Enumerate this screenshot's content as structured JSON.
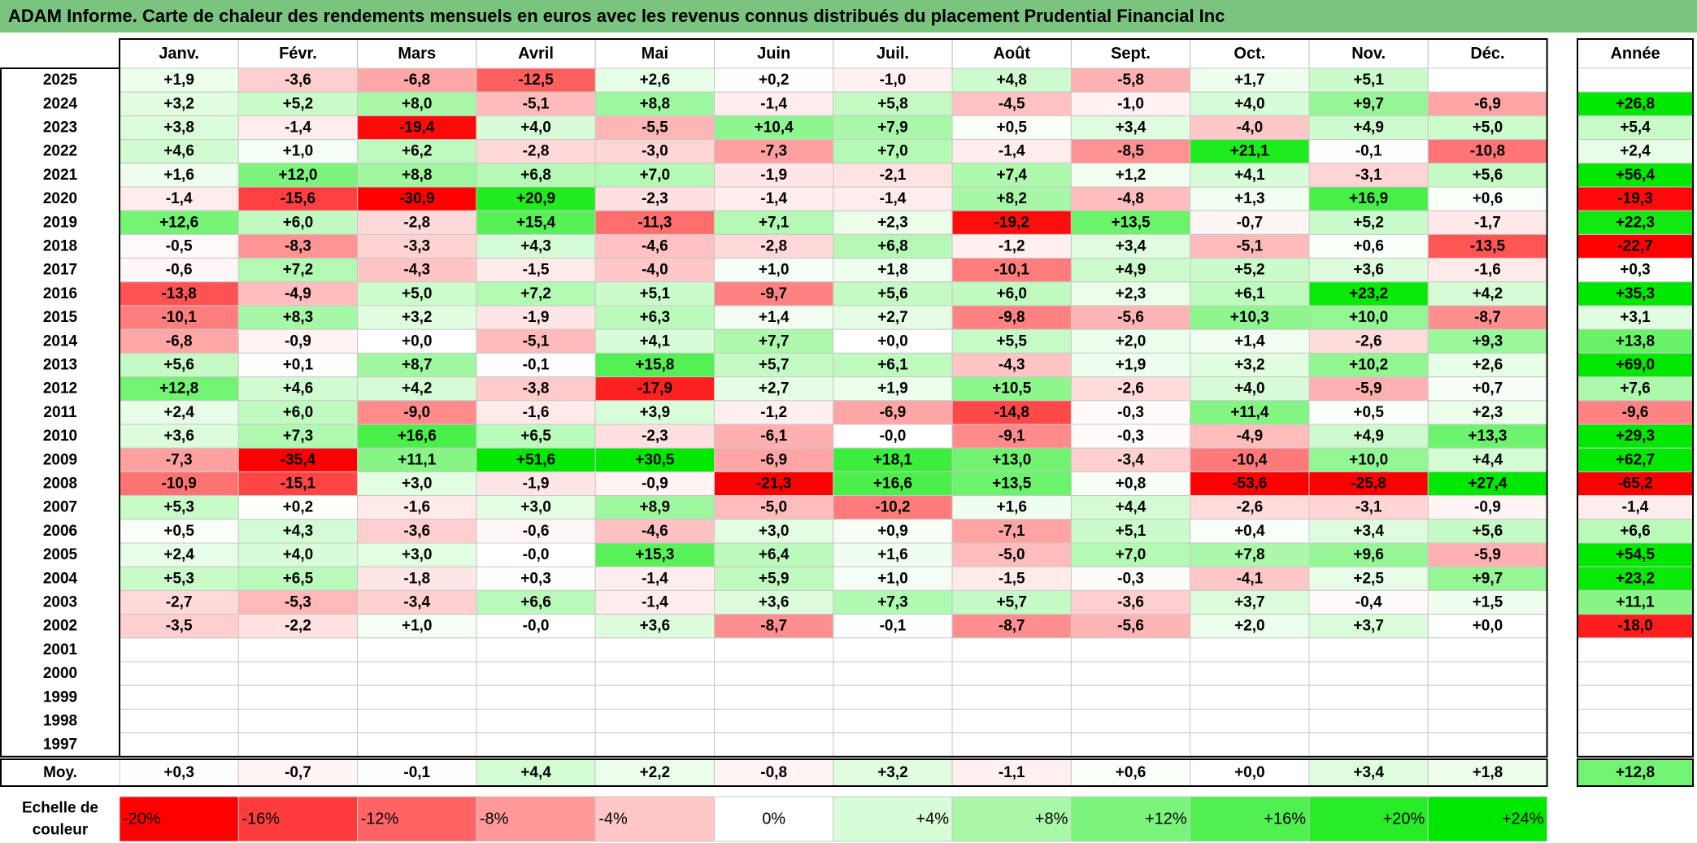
{
  "title": "ADAM Informe. Carte de chaleur des rendements mensuels en euros avec les revenus connus distribués du placement Prudential Financial Inc",
  "chart_data": {
    "type": "heatmap",
    "title": "ADAM Informe. Carte de chaleur des rendements mensuels en euros avec les revenus connus distribués du placement Prudential Financial Inc",
    "columns": [
      "Janv.",
      "Févr.",
      "Mars",
      "Avril",
      "Mai",
      "Juin",
      "Juil.",
      "Août",
      "Sept.",
      "Oct.",
      "Nov.",
      "Déc."
    ],
    "year_column_label": "Année",
    "rows": [
      {
        "year": "2025",
        "values": [
          "+1,9",
          "-3,6",
          "-6,8",
          "-12,5",
          "+2,6",
          "+0,2",
          "-1,0",
          "+4,8",
          "-5,8",
          "+1,7",
          "+5,1",
          ""
        ],
        "annual": ""
      },
      {
        "year": "2024",
        "values": [
          "+3,2",
          "+5,2",
          "+8,0",
          "-5,1",
          "+8,8",
          "-1,4",
          "+5,8",
          "-4,5",
          "-1,0",
          "+4,0",
          "+9,7",
          "-6,9"
        ],
        "annual": "+26,8"
      },
      {
        "year": "2023",
        "values": [
          "+3,8",
          "-1,4",
          "-19,4",
          "+4,0",
          "-5,5",
          "+10,4",
          "+7,9",
          "+0,5",
          "+3,4",
          "-4,0",
          "+4,9",
          "+5,0"
        ],
        "annual": "+5,4"
      },
      {
        "year": "2022",
        "values": [
          "+4,6",
          "+1,0",
          "+6,2",
          "-2,8",
          "-3,0",
          "-7,3",
          "+7,0",
          "-1,4",
          "-8,5",
          "+21,1",
          "-0,1",
          "-10,8"
        ],
        "annual": "+2,4"
      },
      {
        "year": "2021",
        "values": [
          "+1,6",
          "+12,0",
          "+8,8",
          "+6,8",
          "+7,0",
          "-1,9",
          "-2,1",
          "+7,4",
          "+1,2",
          "+4,1",
          "-3,1",
          "+5,6"
        ],
        "annual": "+56,4"
      },
      {
        "year": "2020",
        "values": [
          "-1,4",
          "-15,6",
          "-30,9",
          "+20,9",
          "-2,3",
          "-1,4",
          "-1,4",
          "+8,2",
          "-4,8",
          "+1,3",
          "+16,9",
          "+0,6"
        ],
        "annual": "-19,3"
      },
      {
        "year": "2019",
        "values": [
          "+12,6",
          "+6,0",
          "-2,8",
          "+15,4",
          "-11,3",
          "+7,1",
          "+2,3",
          "-19,2",
          "+13,5",
          "-0,7",
          "+5,2",
          "-1,7"
        ],
        "annual": "+22,3"
      },
      {
        "year": "2018",
        "values": [
          "-0,5",
          "-8,3",
          "-3,3",
          "+4,3",
          "-4,6",
          "-2,8",
          "+6,8",
          "-1,2",
          "+3,4",
          "-5,1",
          "+0,6",
          "-13,5"
        ],
        "annual": "-22,7"
      },
      {
        "year": "2017",
        "values": [
          "-0,6",
          "+7,2",
          "-4,3",
          "-1,5",
          "-4,0",
          "+1,0",
          "+1,8",
          "-10,1",
          "+4,9",
          "+5,2",
          "+3,6",
          "-1,6"
        ],
        "annual": "+0,3"
      },
      {
        "year": "2016",
        "values": [
          "-13,8",
          "-4,9",
          "+5,0",
          "+7,2",
          "+5,1",
          "-9,7",
          "+5,6",
          "+6,0",
          "+2,3",
          "+6,1",
          "+23,2",
          "+4,2"
        ],
        "annual": "+35,3"
      },
      {
        "year": "2015",
        "values": [
          "-10,1",
          "+8,3",
          "+3,2",
          "-1,9",
          "+6,3",
          "+1,4",
          "+2,7",
          "-9,8",
          "-5,6",
          "+10,3",
          "+10,0",
          "-8,7"
        ],
        "annual": "+3,1"
      },
      {
        "year": "2014",
        "values": [
          "-6,8",
          "-0,9",
          "+0,0",
          "-5,1",
          "+4,1",
          "+7,7",
          "+0,0",
          "+5,5",
          "+2,0",
          "+1,4",
          "-2,6",
          "+9,3"
        ],
        "annual": "+13,8"
      },
      {
        "year": "2013",
        "values": [
          "+5,6",
          "+0,1",
          "+8,7",
          "-0,1",
          "+15,8",
          "+5,7",
          "+6,1",
          "-4,3",
          "+1,9",
          "+3,2",
          "+10,2",
          "+2,6"
        ],
        "annual": "+69,0"
      },
      {
        "year": "2012",
        "values": [
          "+12,8",
          "+4,6",
          "+4,2",
          "-3,8",
          "-17,9",
          "+2,7",
          "+1,9",
          "+10,5",
          "-2,6",
          "+4,0",
          "-5,9",
          "+0,7"
        ],
        "annual": "+7,6"
      },
      {
        "year": "2011",
        "values": [
          "+2,4",
          "+6,0",
          "-9,0",
          "-1,6",
          "+3,9",
          "-1,2",
          "-6,9",
          "-14,8",
          "-0,3",
          "+11,4",
          "+0,5",
          "+2,3"
        ],
        "annual": "-9,6"
      },
      {
        "year": "2010",
        "values": [
          "+3,6",
          "+7,3",
          "+16,6",
          "+6,5",
          "-2,3",
          "-6,1",
          "-0,0",
          "-9,1",
          "-0,3",
          "-4,9",
          "+4,9",
          "+13,3"
        ],
        "annual": "+29,3"
      },
      {
        "year": "2009",
        "values": [
          "-7,3",
          "-35,4",
          "+11,1",
          "+51,6",
          "+30,5",
          "-6,9",
          "+18,1",
          "+13,0",
          "-3,4",
          "-10,4",
          "+10,0",
          "+4,4"
        ],
        "annual": "+62,7"
      },
      {
        "year": "2008",
        "values": [
          "-10,9",
          "-15,1",
          "+3,0",
          "-1,9",
          "-0,9",
          "-21,3",
          "+16,6",
          "+13,5",
          "+0,8",
          "-53,6",
          "-25,8",
          "+27,4"
        ],
        "annual": "-65,2"
      },
      {
        "year": "2007",
        "values": [
          "+5,3",
          "+0,2",
          "-1,6",
          "+3,0",
          "+8,9",
          "-5,0",
          "-10,2",
          "+1,6",
          "+4,4",
          "-2,6",
          "-3,1",
          "-0,9"
        ],
        "annual": "-1,4"
      },
      {
        "year": "2006",
        "values": [
          "+0,5",
          "+4,3",
          "-3,6",
          "-0,6",
          "-4,6",
          "+3,0",
          "+0,9",
          "-7,1",
          "+5,1",
          "+0,4",
          "+3,4",
          "+5,6"
        ],
        "annual": "+6,6"
      },
      {
        "year": "2005",
        "values": [
          "+2,4",
          "+4,0",
          "+3,0",
          "-0,0",
          "+15,3",
          "+6,4",
          "+1,6",
          "-5,0",
          "+7,0",
          "+7,8",
          "+9,6",
          "-5,9"
        ],
        "annual": "+54,5"
      },
      {
        "year": "2004",
        "values": [
          "+5,3",
          "+6,5",
          "-1,8",
          "+0,3",
          "-1,4",
          "+5,9",
          "+1,0",
          "-1,5",
          "-0,3",
          "-4,1",
          "+2,5",
          "+9,7"
        ],
        "annual": "+23,2"
      },
      {
        "year": "2003",
        "values": [
          "-2,7",
          "-5,3",
          "-3,4",
          "+6,6",
          "-1,4",
          "+3,6",
          "+7,3",
          "+5,7",
          "-3,6",
          "+3,7",
          "-0,4",
          "+1,5"
        ],
        "annual": "+11,1"
      },
      {
        "year": "2002",
        "values": [
          "-3,5",
          "-2,2",
          "+1,0",
          "-0,0",
          "+3,6",
          "-8,7",
          "-0,1",
          "-8,7",
          "-5,6",
          "+2,0",
          "+3,7",
          "+0,0"
        ],
        "annual": "-18,0"
      },
      {
        "year": "2001",
        "values": [
          "",
          "",
          "",
          "",
          "",
          "",
          "",
          "",
          "",
          "",
          "",
          ""
        ],
        "annual": ""
      },
      {
        "year": "2000",
        "values": [
          "",
          "",
          "",
          "",
          "",
          "",
          "",
          "",
          "",
          "",
          "",
          ""
        ],
        "annual": ""
      },
      {
        "year": "1999",
        "values": [
          "",
          "",
          "",
          "",
          "",
          "",
          "",
          "",
          "",
          "",
          "",
          ""
        ],
        "annual": ""
      },
      {
        "year": "1998",
        "values": [
          "",
          "",
          "",
          "",
          "",
          "",
          "",
          "",
          "",
          "",
          "",
          ""
        ],
        "annual": ""
      },
      {
        "year": "1997",
        "values": [
          "",
          "",
          "",
          "",
          "",
          "",
          "",
          "",
          "",
          "",
          "",
          ""
        ],
        "annual": ""
      }
    ],
    "average": {
      "label": "Moy.",
      "values": [
        "+0,3",
        "-0,7",
        "-0,1",
        "+4,4",
        "+2,2",
        "-0,8",
        "+3,2",
        "-1,1",
        "+0,6",
        "+0,0",
        "+3,4",
        "+1,8"
      ],
      "annual": "+12,8"
    },
    "color_scale": {
      "label_line1": "Echelle de",
      "label_line2": "couleur",
      "stops": [
        {
          "label": "-20%",
          "value": -20,
          "color": "#ff0000"
        },
        {
          "label": "-16%",
          "value": -16,
          "color": "#ff3c3c"
        },
        {
          "label": "-12%",
          "value": -12,
          "color": "#ff6464"
        },
        {
          "label": "-8%",
          "value": -8,
          "color": "#ff9898"
        },
        {
          "label": "-4%",
          "value": -4,
          "color": "#ffc8c8"
        },
        {
          "label": "0%",
          "value": 0,
          "color": "#ffffff"
        },
        {
          "label": "+4%",
          "value": 4,
          "color": "#d8fcd8"
        },
        {
          "label": "+8%",
          "value": 8,
          "color": "#a8f8a8"
        },
        {
          "label": "+12%",
          "value": 12,
          "color": "#7cf47c"
        },
        {
          "label": "+16%",
          "value": 16,
          "color": "#50f050"
        },
        {
          "label": "+20%",
          "value": 20,
          "color": "#28ec28"
        },
        {
          "label": "+24%",
          "value": 24,
          "color": "#00e800"
        }
      ]
    }
  }
}
